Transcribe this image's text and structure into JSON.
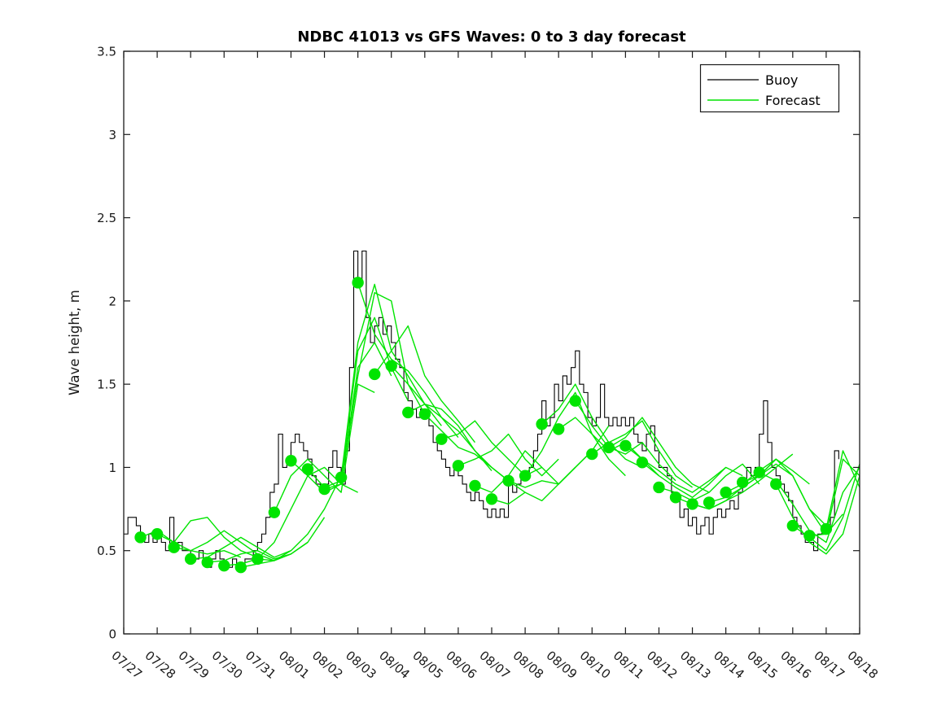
{
  "chart_data": {
    "type": "line",
    "title": "NDBC 41013 vs GFS Waves: 0 to 3 day forecast",
    "xlabel": "",
    "ylabel": "Wave height, m",
    "xlim_days": [
      0,
      22
    ],
    "ylim": [
      0,
      3.5
    ],
    "yticks": [
      0,
      0.5,
      1,
      1.5,
      2,
      2.5,
      3,
      3.5
    ],
    "ytick_labels": [
      "0",
      "0.5",
      "1",
      "1.5",
      "2",
      "2.5",
      "3",
      "3.5"
    ],
    "xtick_labels": [
      "07/27",
      "07/28",
      "07/29",
      "07/30",
      "07/31",
      "08/01",
      "08/02",
      "08/03",
      "08/04",
      "08/05",
      "08/06",
      "08/07",
      "08/08",
      "08/09",
      "08/10",
      "08/11",
      "08/12",
      "08/13",
      "08/14",
      "08/15",
      "08/16",
      "08/17",
      "08/18"
    ],
    "xtick_angle_deg": 40,
    "grid": false,
    "legend_position": "top-right",
    "colors": {
      "buoy": "#000000",
      "forecast": "#00e400",
      "axis": "#1a1a1a",
      "background": "#ffffff"
    },
    "legend": [
      {
        "label": "Buoy",
        "color": "#000000"
      },
      {
        "label": "Forecast",
        "color": "#00e400"
      }
    ],
    "buoy": {
      "x_start_day": 0,
      "x_step_days": 0.125,
      "y": [
        0.6,
        0.7,
        0.7,
        0.65,
        0.6,
        0.55,
        0.6,
        0.55,
        0.6,
        0.55,
        0.5,
        0.7,
        0.5,
        0.55,
        0.5,
        0.5,
        0.45,
        0.45,
        0.5,
        0.45,
        0.4,
        0.45,
        0.5,
        0.45,
        0.4,
        0.4,
        0.45,
        0.4,
        0.4,
        0.45,
        0.45,
        0.5,
        0.55,
        0.6,
        0.7,
        0.85,
        0.9,
        1.2,
        1.0,
        1.05,
        1.15,
        1.2,
        1.15,
        1.1,
        1.05,
        0.95,
        0.9,
        0.85,
        0.9,
        1.0,
        1.1,
        1.0,
        0.9,
        1.1,
        1.6,
        2.3,
        2.1,
        2.3,
        1.9,
        1.75,
        1.85,
        1.9,
        1.8,
        1.85,
        1.75,
        1.65,
        1.6,
        1.45,
        1.4,
        1.35,
        1.3,
        1.35,
        1.3,
        1.25,
        1.15,
        1.1,
        1.05,
        1.0,
        0.95,
        1.0,
        0.95,
        0.9,
        0.85,
        0.8,
        0.85,
        0.8,
        0.75,
        0.7,
        0.75,
        0.7,
        0.75,
        0.7,
        0.9,
        0.85,
        0.9,
        0.95,
        0.95,
        1.0,
        1.1,
        1.2,
        1.4,
        1.25,
        1.3,
        1.5,
        1.4,
        1.55,
        1.5,
        1.6,
        1.7,
        1.5,
        1.45,
        1.3,
        1.25,
        1.3,
        1.5,
        1.3,
        1.25,
        1.3,
        1.25,
        1.3,
        1.25,
        1.3,
        1.2,
        1.15,
        1.1,
        1.2,
        1.25,
        1.1,
        1.0,
        1.0,
        0.95,
        0.85,
        0.8,
        0.7,
        0.75,
        0.65,
        0.7,
        0.6,
        0.65,
        0.7,
        0.6,
        0.7,
        0.75,
        0.7,
        0.75,
        0.8,
        0.75,
        0.85,
        0.9,
        1.0,
        0.95,
        1.0,
        1.2,
        1.4,
        1.15,
        1.0,
        0.95,
        0.9,
        0.85,
        0.8,
        0.7,
        0.65,
        0.6,
        0.55,
        0.55,
        0.5,
        0.6,
        0.65,
        0.65,
        0.7,
        1.1,
        1.05
      ]
    },
    "forecast_markers": {
      "x_start_day": 0.5,
      "x_step_days": 0.5,
      "y": [
        0.58,
        0.6,
        0.52,
        0.45,
        0.43,
        0.41,
        0.4,
        0.45,
        0.73,
        1.04,
        0.99,
        0.87,
        0.94,
        2.11,
        1.56,
        1.61,
        1.33,
        1.32,
        1.17,
        1.01,
        0.89,
        0.81,
        0.92,
        0.95,
        1.26,
        1.23,
        1.4,
        1.08,
        1.12,
        1.13,
        1.03,
        0.88,
        0.82,
        0.78,
        0.79,
        0.85,
        0.91,
        0.97,
        0.9,
        0.65,
        0.59,
        0.63
      ]
    },
    "forecast_runs": [
      {
        "start_day": 0.5,
        "step_days": 0.5,
        "y": [
          0.58,
          0.62,
          0.55,
          0.5,
          0.48,
          0.5,
          0.46
        ]
      },
      {
        "start_day": 1.0,
        "step_days": 0.5,
        "y": [
          0.6,
          0.55,
          0.68,
          0.7,
          0.58,
          0.5,
          0.46
        ]
      },
      {
        "start_day": 1.5,
        "step_days": 0.5,
        "y": [
          0.52,
          0.5,
          0.55,
          0.62,
          0.55,
          0.48,
          0.44
        ]
      },
      {
        "start_day": 2.0,
        "step_days": 0.5,
        "y": [
          0.45,
          0.46,
          0.52,
          0.58,
          0.52,
          0.46,
          0.5
        ]
      },
      {
        "start_day": 2.5,
        "step_days": 0.5,
        "y": [
          0.43,
          0.44,
          0.48,
          0.5,
          0.45,
          0.48,
          0.55
        ]
      },
      {
        "start_day": 3.0,
        "step_days": 0.5,
        "y": [
          0.41,
          0.42,
          0.45,
          0.44,
          0.48,
          0.55,
          0.7
        ]
      },
      {
        "start_day": 3.5,
        "step_days": 0.5,
        "y": [
          0.4,
          0.42,
          0.44,
          0.5,
          0.6,
          0.75,
          0.95
        ]
      },
      {
        "start_day": 4.0,
        "step_days": 0.5,
        "y": [
          0.45,
          0.55,
          0.75,
          0.95,
          1.0,
          0.9,
          0.85
        ]
      },
      {
        "start_day": 4.5,
        "step_days": 0.5,
        "y": [
          0.73,
          0.95,
          1.05,
          0.95,
          0.85,
          1.5,
          1.45
        ]
      },
      {
        "start_day": 5.0,
        "step_days": 0.5,
        "y": [
          1.04,
          0.95,
          0.85,
          0.9,
          1.6,
          1.75,
          1.55
        ]
      },
      {
        "start_day": 5.5,
        "step_days": 0.5,
        "y": [
          0.99,
          0.88,
          0.92,
          1.7,
          1.9,
          1.6,
          1.4
        ]
      },
      {
        "start_day": 6.0,
        "step_days": 0.5,
        "y": [
          0.87,
          0.9,
          1.55,
          2.05,
          2.0,
          1.5,
          1.32
        ]
      },
      {
        "start_day": 6.5,
        "step_days": 0.5,
        "y": [
          0.94,
          1.75,
          2.1,
          1.7,
          1.55,
          1.38,
          1.25
        ]
      },
      {
        "start_day": 7.0,
        "step_days": 0.5,
        "y": [
          2.11,
          1.8,
          1.65,
          1.58,
          1.45,
          1.3,
          1.18
        ]
      },
      {
        "start_day": 7.5,
        "step_days": 0.5,
        "y": [
          1.56,
          1.7,
          1.85,
          1.55,
          1.4,
          1.28,
          1.15
        ]
      },
      {
        "start_day": 8.0,
        "step_days": 0.5,
        "y": [
          1.61,
          1.5,
          1.38,
          1.35,
          1.25,
          1.1,
          0.98
        ]
      },
      {
        "start_day": 8.5,
        "step_days": 0.5,
        "y": [
          1.33,
          1.38,
          1.3,
          1.22,
          1.1,
          1.0,
          0.92
        ]
      },
      {
        "start_day": 9.0,
        "step_days": 0.5,
        "y": [
          1.32,
          1.22,
          1.12,
          1.08,
          1.0,
          0.92,
          0.85
        ]
      },
      {
        "start_day": 9.5,
        "step_days": 0.5,
        "y": [
          1.17,
          1.2,
          1.28,
          1.15,
          1.05,
          0.95,
          1.0
        ]
      },
      {
        "start_day": 10.0,
        "step_days": 0.5,
        "y": [
          1.01,
          1.05,
          1.1,
          1.2,
          1.05,
          0.95,
          1.05
        ]
      },
      {
        "start_day": 10.5,
        "step_days": 0.5,
        "y": [
          0.89,
          0.85,
          0.95,
          1.1,
          1.0,
          0.9,
          1.0
        ]
      },
      {
        "start_day": 11.0,
        "step_days": 0.5,
        "y": [
          0.81,
          0.78,
          0.85,
          0.8,
          0.9,
          1.0,
          1.1
        ]
      },
      {
        "start_day": 11.5,
        "step_days": 0.5,
        "y": [
          0.92,
          0.88,
          0.92,
          0.9,
          1.0,
          1.1,
          1.25
        ]
      },
      {
        "start_day": 12.0,
        "step_days": 0.5,
        "y": [
          0.95,
          1.1,
          1.3,
          1.45,
          1.2,
          1.05,
          0.95
        ]
      },
      {
        "start_day": 12.5,
        "step_days": 0.5,
        "y": [
          1.26,
          1.35,
          1.5,
          1.3,
          1.15,
          1.05,
          1.0
        ]
      },
      {
        "start_day": 13.0,
        "step_days": 0.5,
        "y": [
          1.23,
          1.3,
          1.2,
          1.1,
          1.15,
          1.05,
          0.95
        ]
      },
      {
        "start_day": 13.5,
        "step_days": 0.5,
        "y": [
          1.4,
          1.25,
          1.12,
          1.08,
          1.15,
          1.02,
          0.92
        ]
      },
      {
        "start_day": 14.0,
        "step_days": 0.5,
        "y": [
          1.08,
          1.15,
          1.2,
          1.28,
          1.1,
          0.95,
          0.88
        ]
      },
      {
        "start_day": 14.5,
        "step_days": 0.5,
        "y": [
          1.12,
          1.18,
          1.3,
          1.15,
          1.0,
          0.9,
          0.85
        ]
      },
      {
        "start_day": 15.0,
        "step_days": 0.5,
        "y": [
          1.13,
          1.05,
          0.98,
          0.9,
          0.85,
          0.92,
          1.0
        ]
      },
      {
        "start_day": 15.5,
        "step_days": 0.5,
        "y": [
          1.03,
          0.95,
          0.88,
          0.82,
          0.9,
          1.0,
          0.95
        ]
      },
      {
        "start_day": 16.0,
        "step_days": 0.5,
        "y": [
          0.88,
          0.85,
          0.8,
          0.85,
          0.95,
          1.02,
          0.9
        ]
      },
      {
        "start_day": 16.5,
        "step_days": 0.5,
        "y": [
          0.82,
          0.78,
          0.75,
          0.8,
          0.88,
          0.95,
          1.05
        ]
      },
      {
        "start_day": 17.0,
        "step_days": 0.5,
        "y": [
          0.78,
          0.75,
          0.8,
          0.85,
          0.92,
          1.0,
          1.08
        ]
      },
      {
        "start_day": 17.5,
        "step_days": 0.5,
        "y": [
          0.79,
          0.82,
          0.88,
          0.95,
          1.05,
          0.98,
          0.9
        ]
      },
      {
        "start_day": 18.0,
        "step_days": 0.5,
        "y": [
          0.85,
          0.9,
          0.98,
          1.05,
          0.95,
          0.75,
          0.65
        ]
      },
      {
        "start_day": 18.5,
        "step_days": 0.5,
        "y": [
          0.91,
          0.95,
          1.02,
          0.95,
          0.75,
          0.6,
          0.72
        ]
      },
      {
        "start_day": 19.0,
        "step_days": 0.5,
        "y": [
          0.97,
          0.92,
          0.78,
          0.62,
          0.55,
          0.85,
          1.0
        ]
      },
      {
        "start_day": 19.5,
        "step_days": 0.5,
        "y": [
          0.9,
          0.7,
          0.55,
          0.48,
          0.6,
          0.95
        ]
      },
      {
        "start_day": 20.0,
        "step_days": 0.5,
        "y": [
          0.65,
          0.58,
          0.5,
          0.7,
          1.02
        ]
      },
      {
        "start_day": 20.5,
        "step_days": 0.5,
        "y": [
          0.59,
          0.6,
          1.05,
          0.95
        ]
      },
      {
        "start_day": 21.0,
        "step_days": 0.5,
        "y": [
          0.63,
          1.1,
          0.88
        ]
      }
    ]
  }
}
